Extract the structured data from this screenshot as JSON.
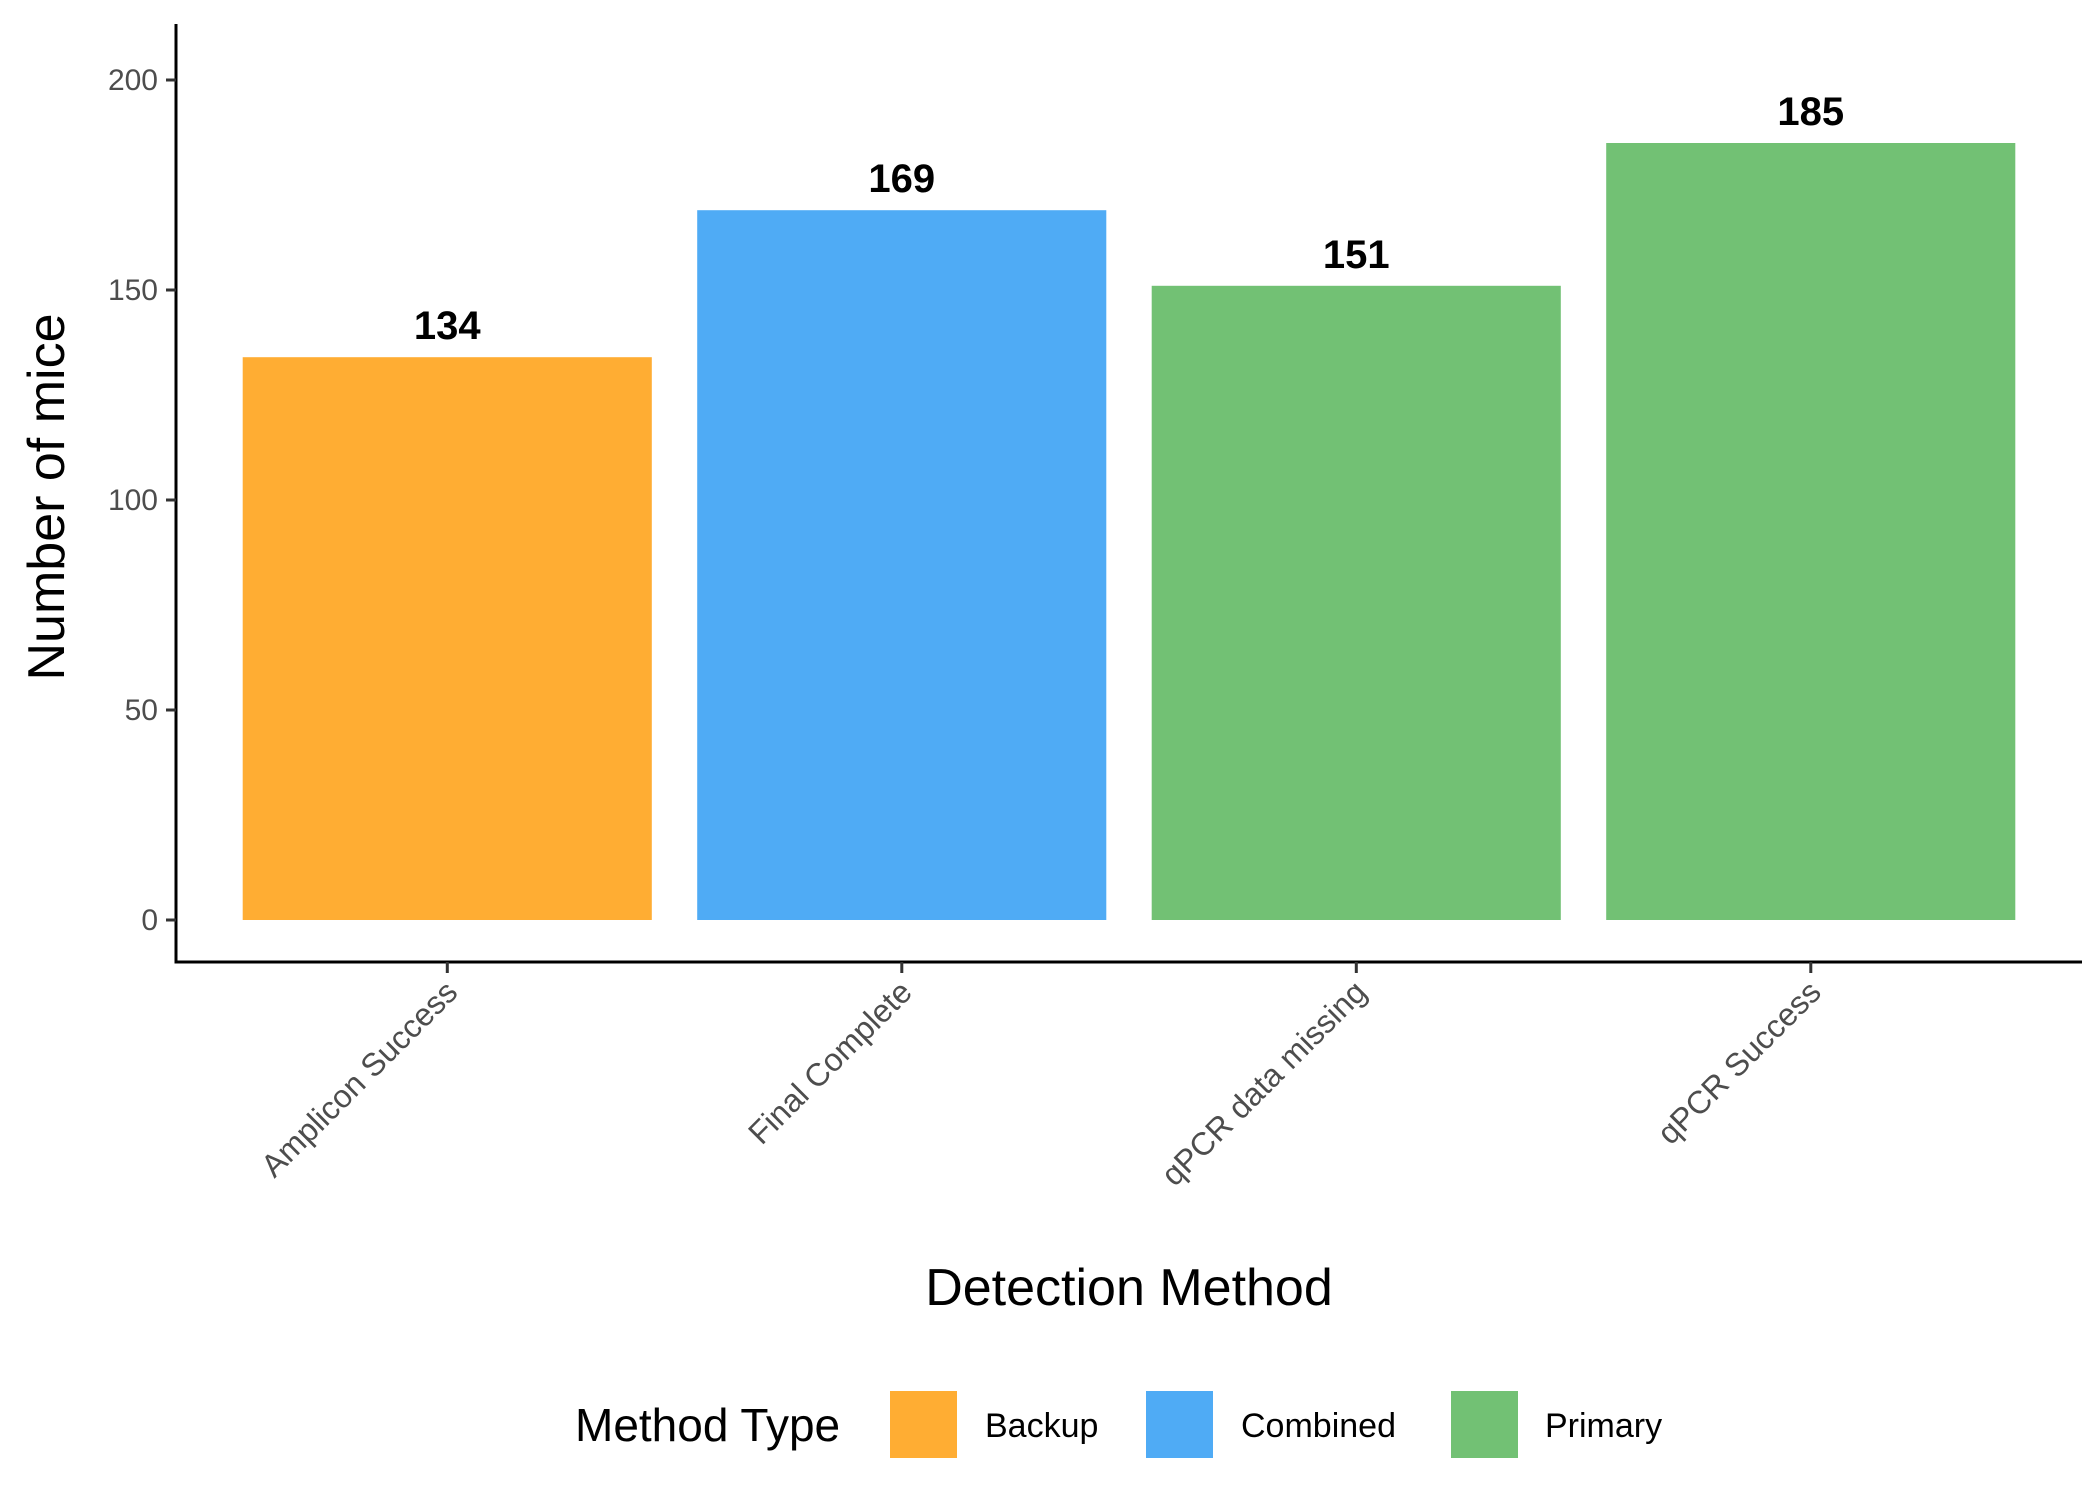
{
  "chart_data": {
    "type": "bar",
    "categories": [
      "Amplicon Success",
      "Final Complete",
      "qPCR data missing",
      "qPCR Success"
    ],
    "values": [
      134,
      169,
      151,
      185
    ],
    "groups": [
      "Backup",
      "Combined",
      "Primary",
      "Primary"
    ],
    "xlabel": "Detection Method",
    "ylabel": "Number of mice",
    "ylim": [
      0,
      214
    ],
    "yticks": [
      0,
      50,
      100,
      150,
      200
    ],
    "grid": false,
    "legend": {
      "title": "Method Type",
      "placement": "bottom",
      "entries": [
        {
          "name": "Backup",
          "color": "#FFAD33"
        },
        {
          "name": "Combined",
          "color": "#4FABF5"
        },
        {
          "name": "Primary",
          "color": "#72C174"
        }
      ]
    }
  }
}
